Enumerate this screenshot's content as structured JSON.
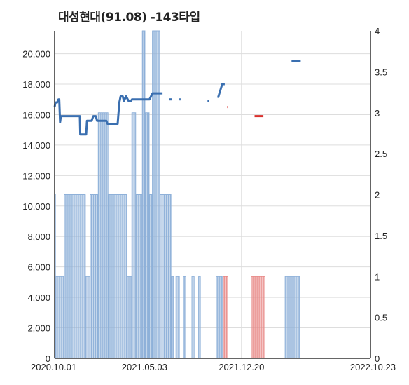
{
  "chart_data": {
    "type": "bar+line",
    "title": "대성현대(91.08) -143타입",
    "x_ticks": [
      "2020.10.01",
      "2021.05.03",
      "2021.12.20",
      "2022.10.23"
    ],
    "y_left": {
      "ticks": [
        "0",
        "2,000",
        "4,000",
        "6,000",
        "8,000",
        "10,000",
        "12,000",
        "14,000",
        "16,000",
        "18,000",
        "20,000"
      ],
      "range": [
        0,
        21500
      ]
    },
    "y_right": {
      "ticks": [
        "0",
        "0.5",
        "1",
        "1.5",
        "2",
        "2.5",
        "3",
        "3.5",
        "4"
      ],
      "range": [
        0,
        4
      ]
    },
    "colors": {
      "price_line": "#3a6fb0",
      "volume_bar": "#8fb1d9",
      "highlight": "#d9302c",
      "grid": "#dddddd"
    },
    "price_series": {
      "name": "",
      "segments": [
        [
          [
            "2020.10.01",
            16500
          ],
          [
            "2020.10.03",
            16800
          ],
          [
            "2020.10.07",
            16800
          ],
          [
            "2020.10.10",
            17000
          ],
          [
            "2020.10.12",
            17000
          ],
          [
            "2020.10.14",
            15500
          ],
          [
            "2020.10.16",
            15900
          ],
          [
            "2020.11.30",
            15900
          ],
          [
            "2020.12.01",
            14700
          ],
          [
            "2020.12.15",
            14700
          ],
          [
            "2020.12.17",
            15600
          ],
          [
            "2020.12.28",
            15600
          ],
          [
            "2021.01.01",
            15900
          ],
          [
            "2021.01.07",
            15900
          ],
          [
            "2021.01.10",
            15600
          ],
          [
            "2021.02.01",
            15600
          ],
          [
            "2021.02.04",
            15400
          ],
          [
            "2021.02.28",
            15400
          ],
          [
            "2021.03.04",
            16800
          ],
          [
            "2021.03.07",
            17200
          ],
          [
            "2021.03.12",
            17200
          ],
          [
            "2021.03.15",
            16900
          ],
          [
            "2021.03.20",
            17200
          ],
          [
            "2021.03.24",
            17000
          ],
          [
            "2021.03.26",
            16900
          ],
          [
            "2021.04.01",
            16900
          ],
          [
            "2021.04.03",
            17000
          ],
          [
            "2021.05.01",
            17000
          ],
          [
            "2021.05.15",
            17000
          ],
          [
            "2021.05.22",
            17400
          ],
          [
            "2021.06.15",
            17400
          ]
        ],
        [
          [
            "2021.07.01",
            17000
          ],
          [
            "2021.07.08",
            17000
          ]
        ],
        [
          [
            "2021.07.25",
            17000
          ],
          [
            "2021.07.28",
            17000
          ]
        ],
        [
          [
            "2021.09.30",
            16900
          ],
          [
            "2021.10.03",
            16900
          ]
        ],
        [
          [
            "2021.10.25",
            17100
          ],
          [
            "2021.11.04",
            18000
          ],
          [
            "2021.11.10",
            18000
          ]
        ],
        [
          [
            "2022.04.18",
            19500
          ],
          [
            "2022.05.10",
            19500
          ]
        ]
      ]
    },
    "highlight_marks": [
      [
        [
          "2021.11.16",
          16500
        ],
        [
          "2021.11.18",
          16500
        ]
      ],
      [
        [
          "2022.01.20",
          15900
        ],
        [
          "2022.02.10",
          15900
        ]
      ]
    ],
    "volume_blocks": [
      {
        "from": "2020.10.01",
        "to": "2020.10.03",
        "value": 2,
        "color": "blue"
      },
      {
        "from": "2020.10.04",
        "to": "2020.10.23",
        "value": 1,
        "color": "blue"
      },
      {
        "from": "2020.10.24",
        "to": "2020.12.13",
        "value": 2,
        "color": "blue"
      },
      {
        "from": "2020.12.14",
        "to": "2020.12.24",
        "value": 1,
        "color": "blue"
      },
      {
        "from": "2020.12.25",
        "to": "2021.01.12",
        "value": 2,
        "color": "blue"
      },
      {
        "from": "2021.01.13",
        "to": "2021.02.05",
        "value": 3,
        "color": "blue"
      },
      {
        "from": "2021.02.06",
        "to": "2021.03.22",
        "value": 2,
        "color": "blue"
      },
      {
        "from": "2021.03.23",
        "to": "2021.04.02",
        "value": 1,
        "color": "blue"
      },
      {
        "from": "2021.04.03",
        "to": "2021.04.12",
        "value": 3,
        "color": "blue"
      },
      {
        "from": "2021.04.13",
        "to": "2021.04.27",
        "value": 2,
        "color": "blue"
      },
      {
        "from": "2021.04.28",
        "to": "2021.05.04",
        "value": 4,
        "color": "blue"
      },
      {
        "from": "2021.05.05",
        "to": "2021.05.14",
        "value": 3,
        "color": "blue"
      },
      {
        "from": "2021.05.15",
        "to": "2021.05.21",
        "value": 2,
        "color": "blue"
      },
      {
        "from": "2021.05.22",
        "to": "2021.06.08",
        "value": 4,
        "color": "blue"
      },
      {
        "from": "2021.06.09",
        "to": "2021.07.05",
        "value": 2,
        "color": "blue"
      },
      {
        "from": "2021.07.06",
        "to": "2021.07.11",
        "value": 1,
        "color": "blue"
      },
      {
        "from": "2021.07.17",
        "to": "2021.07.25",
        "value": 1,
        "color": "blue"
      },
      {
        "from": "2021.08.04",
        "to": "2021.08.09",
        "value": 1,
        "color": "blue"
      },
      {
        "from": "2021.08.24",
        "to": "2021.08.29",
        "value": 1,
        "color": "blue"
      },
      {
        "from": "2021.09.09",
        "to": "2021.09.13",
        "value": 1,
        "color": "blue"
      },
      {
        "from": "2021.10.21",
        "to": "2021.11.04",
        "value": 1,
        "color": "blue"
      },
      {
        "from": "2021.11.07",
        "to": "2021.11.17",
        "value": 1,
        "color": "red"
      },
      {
        "from": "2022.01.12",
        "to": "2022.02.14",
        "value": 1,
        "color": "red"
      },
      {
        "from": "2022.04.03",
        "to": "2022.05.07",
        "value": 1,
        "color": "blue"
      }
    ]
  }
}
